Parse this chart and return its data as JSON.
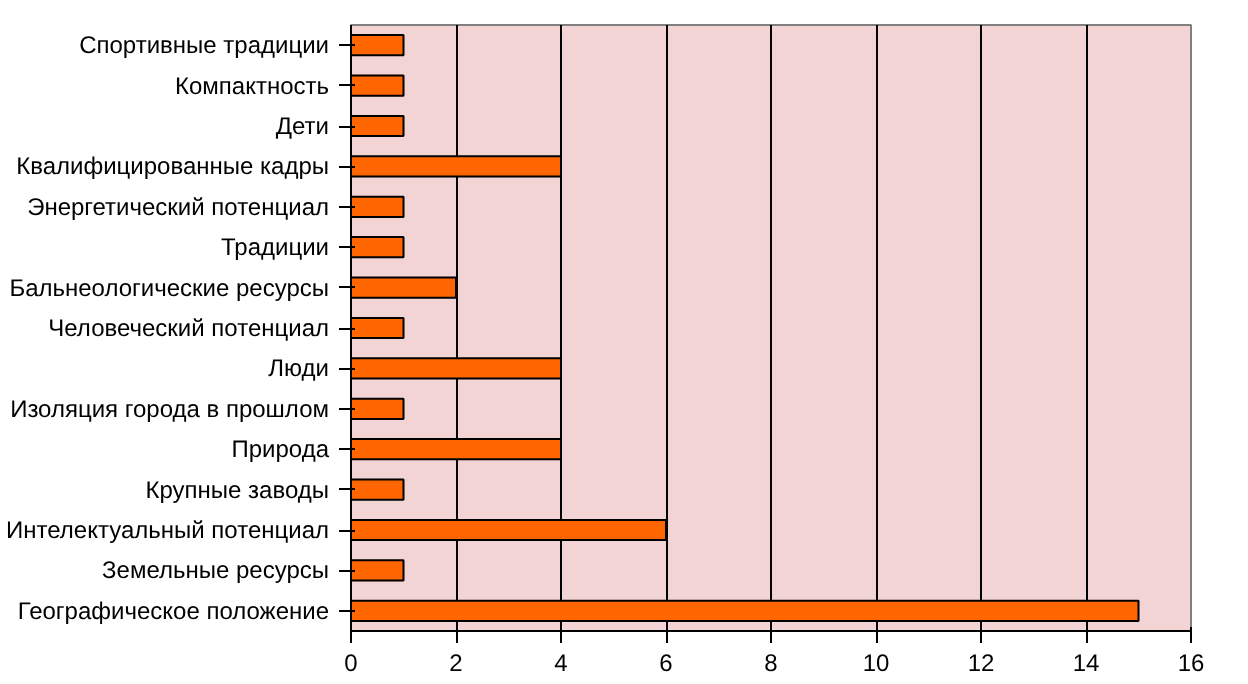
{
  "chart_data": {
    "type": "bar",
    "orientation": "horizontal",
    "categories": [
      "Спортивные традиции",
      "Компактность",
      "Дети",
      "Квалифицированные кадры",
      "Энергетический потенциал",
      "Традиции",
      "Бальнеологические ресурсы",
      "Человеческий потенциал",
      "Люди",
      "Изоляция города в прошлом",
      "Природа",
      "Крупные заводы",
      "Интелектуальный потенциал",
      "Земельные ресурсы",
      "Географическое положение"
    ],
    "values": [
      1,
      1,
      1,
      4,
      1,
      1,
      2,
      1,
      4,
      1,
      4,
      1,
      6,
      1,
      15
    ],
    "color": "#ff6600",
    "xlim": [
      0,
      16
    ],
    "xticks": [
      0,
      2,
      4,
      6,
      8,
      10,
      12,
      14,
      16
    ],
    "grid": "x"
  }
}
